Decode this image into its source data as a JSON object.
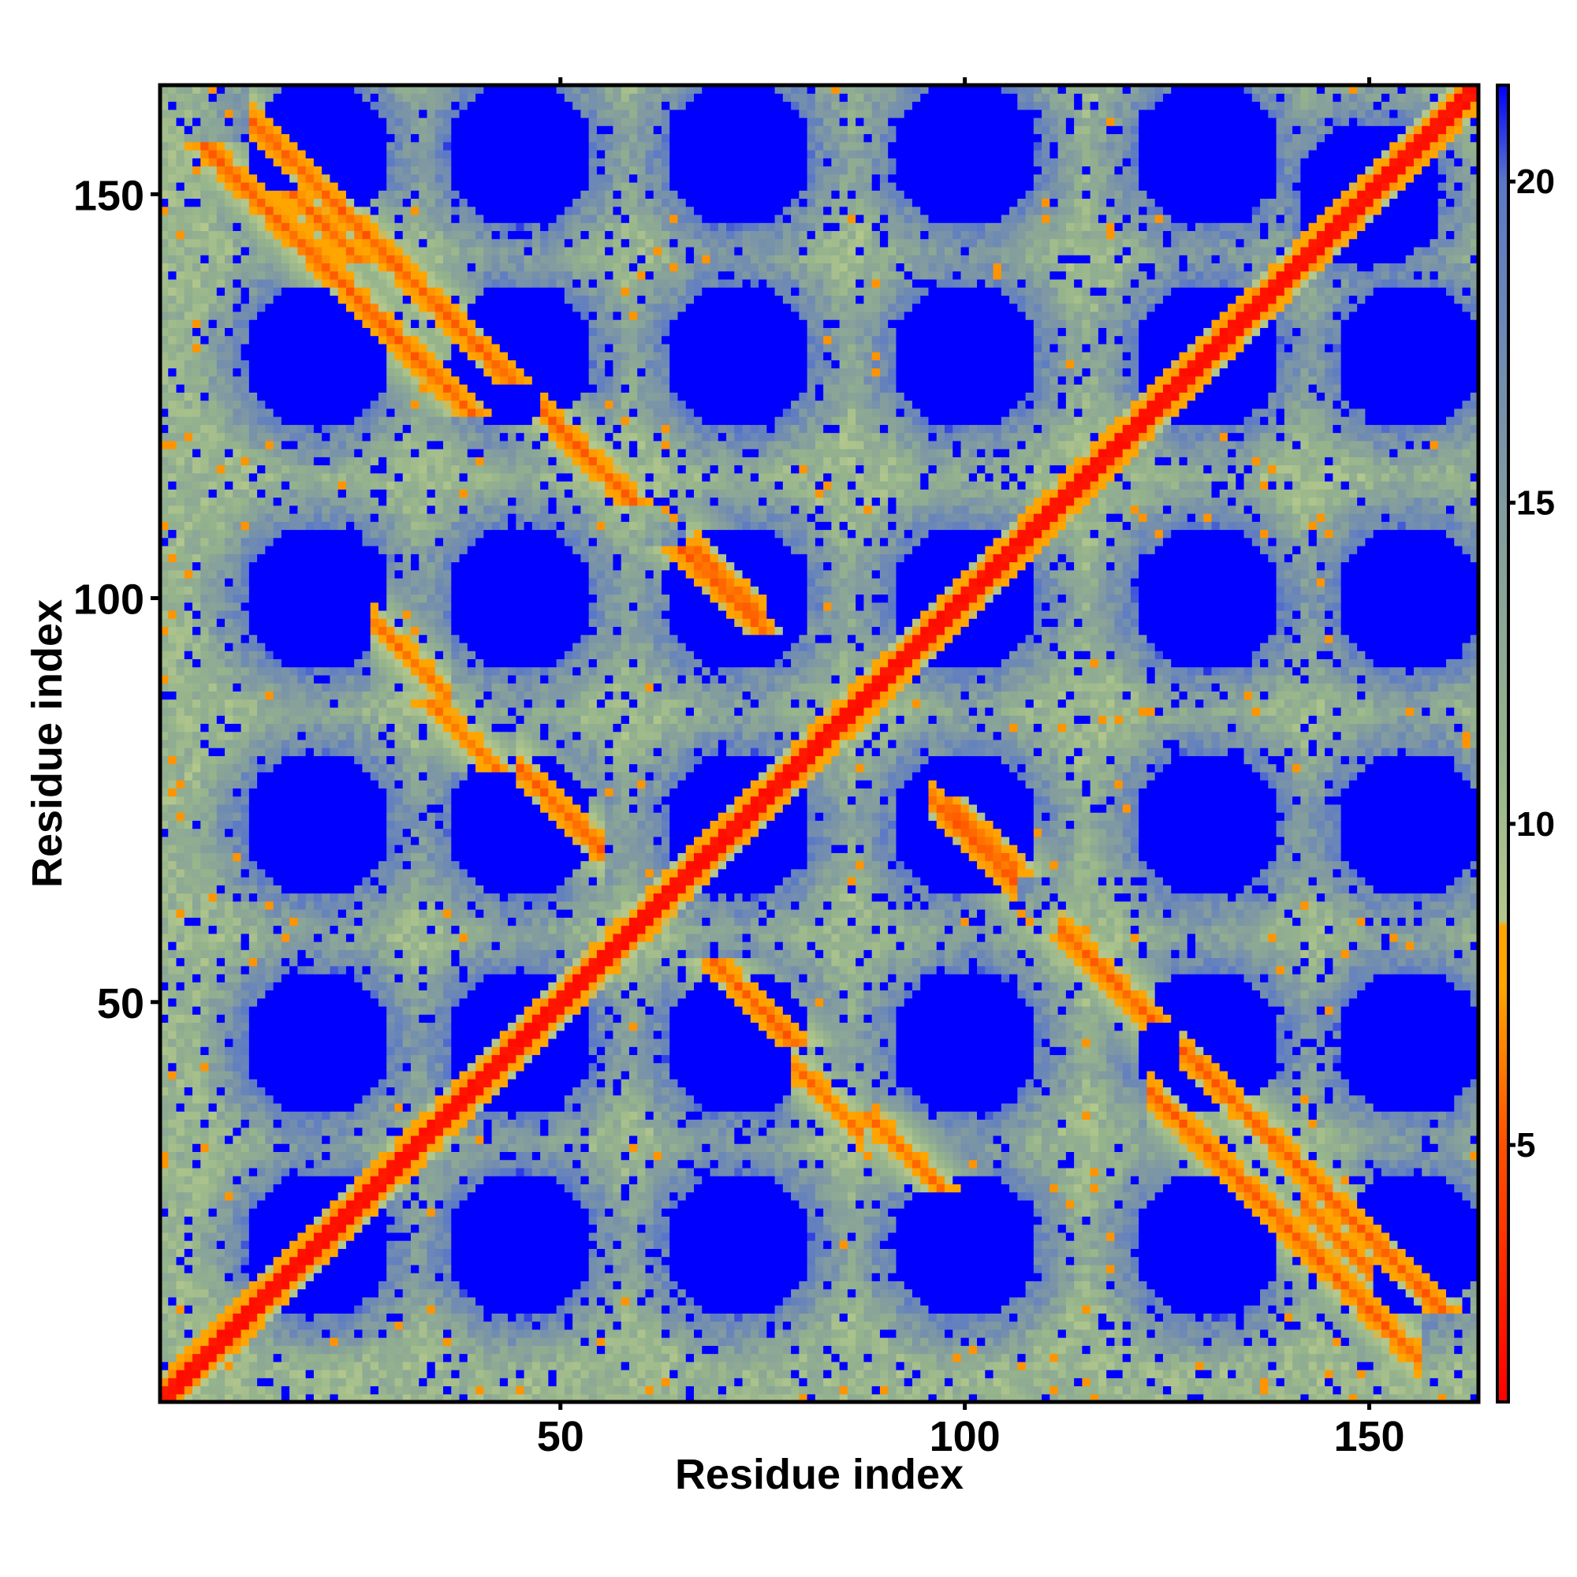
{
  "chart_data": {
    "type": "heatmap",
    "title": "",
    "xlabel": "Residue index",
    "ylabel": "Residue index",
    "n_residues": 163,
    "xlim": [
      1,
      163
    ],
    "ylim": [
      1,
      163
    ],
    "x_ticks": [
      50,
      100,
      150
    ],
    "y_ticks": [
      50,
      100,
      150
    ],
    "x_tick_labels": [
      "50",
      "100",
      "150"
    ],
    "y_tick_labels": [
      "50",
      "100",
      "150"
    ],
    "colorbar": {
      "range": [
        1,
        21.5
      ],
      "ticks": [
        5,
        10,
        15,
        20
      ],
      "tick_labels": [
        "5",
        "10",
        "15",
        "20"
      ],
      "stops": [
        {
          "value": 1,
          "color": "#ff0000"
        },
        {
          "value": 5,
          "color": "#ff5000"
        },
        {
          "value": 7.5,
          "color": "#ffa500"
        },
        {
          "value": 8.4,
          "color": "#ffa500"
        },
        {
          "value": 8.5,
          "color": "#b4c88c"
        },
        {
          "value": 11,
          "color": "#96b48c"
        },
        {
          "value": 15,
          "color": "#829ba0"
        },
        {
          "value": 20,
          "color": "#5a78c8"
        },
        {
          "value": 21.5,
          "color": "#0000ff"
        }
      ]
    },
    "saturation_color": "#0000ff",
    "grid": false,
    "features": {
      "diagonal": {
        "from": 1,
        "to": 163,
        "value": 1.5
      },
      "antiparallel_bands": [
        {
          "sum": 171,
          "from": 12,
          "to": 32,
          "value": 5.5,
          "band_width": 2.2
        },
        {
          "sum": 171,
          "from": 31,
          "to": 41,
          "value": 5.5,
          "band_width": 2.2
        },
        {
          "sum": 171,
          "from": 48,
          "to": 58,
          "value": 5.5,
          "band_width": 2.2
        },
        {
          "sum": 172,
          "from": 66,
          "to": 74,
          "value": 5.8,
          "band_width": 2.2
        },
        {
          "sum": 124,
          "from": 45,
          "to": 55,
          "value": 5.5,
          "band_width": 2.2
        },
        {
          "sum": 124,
          "from": 27,
          "to": 36,
          "value": 6.0,
          "band_width": 2.0
        },
        {
          "sum": 173,
          "from": 67,
          "to": 75,
          "value": 6.0,
          "band_width": 2.0
        },
        {
          "sum": 171,
          "from": 96,
          "to": 106,
          "value": 5.5,
          "band_width": 2.2
        },
        {
          "sum": 171,
          "from": 112,
          "to": 122,
          "value": 5.5,
          "band_width": 2.2
        },
        {
          "sum": 171,
          "from": 127,
          "to": 136,
          "value": 5.5,
          "band_width": 2.2
        },
        {
          "sum": 162,
          "from": 123,
          "to": 139,
          "value": 5.5,
          "band_width": 2.2
        },
        {
          "sum": 162,
          "from": 140,
          "to": 156,
          "value": 5.5,
          "band_width": 2.2
        },
        {
          "sum": 167,
          "from": 142,
          "to": 150,
          "value": 5.8,
          "band_width": 2.2
        },
        {
          "sum": 121,
          "from": 79,
          "to": 87,
          "value": 6.0,
          "band_width": 2.0
        }
      ],
      "blue_hole_centers": [
        [
          20,
          20
        ],
        [
          45,
          45
        ],
        [
          72,
          72
        ],
        [
          100,
          100
        ],
        [
          130,
          130
        ],
        [
          150,
          150
        ],
        [
          20,
          45
        ],
        [
          20,
          72
        ],
        [
          20,
          100
        ],
        [
          20,
          130
        ],
        [
          20,
          155
        ],
        [
          45,
          72
        ],
        [
          45,
          100
        ],
        [
          45,
          130
        ],
        [
          45,
          155
        ],
        [
          72,
          100
        ],
        [
          72,
          130
        ],
        [
          72,
          155
        ],
        [
          100,
          130
        ],
        [
          100,
          155
        ],
        [
          130,
          155
        ],
        [
          45,
          20
        ],
        [
          72,
          20
        ],
        [
          100,
          20
        ],
        [
          130,
          20
        ],
        [
          155,
          20
        ],
        [
          72,
          45
        ],
        [
          100,
          45
        ],
        [
          130,
          45
        ],
        [
          155,
          45
        ],
        [
          100,
          72
        ],
        [
          130,
          72
        ],
        [
          155,
          72
        ],
        [
          130,
          100
        ],
        [
          155,
          100
        ],
        [
          155,
          130
        ]
      ],
      "hole_radius": 11.5
    }
  }
}
